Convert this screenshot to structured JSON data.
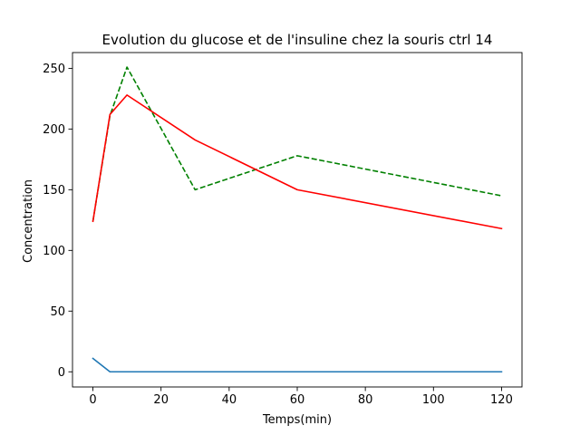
{
  "chart_data": {
    "type": "line",
    "title": "Evolution  du glucose et de l'insuline chez la souris ctrl 14",
    "xlabel": "Temps(min)",
    "ylabel": "Concentration",
    "xlim": [
      -6,
      126
    ],
    "ylim": [
      -12.5,
      263
    ],
    "xticks": [
      0,
      20,
      40,
      60,
      80,
      100,
      120
    ],
    "yticks": [
      0,
      50,
      100,
      150,
      200,
      250
    ],
    "grid": false,
    "series": [
      {
        "color": "#008000",
        "dash": "dashed",
        "points": [
          [
            0,
            124
          ],
          [
            5,
            211
          ],
          [
            10,
            251
          ],
          [
            30,
            150
          ],
          [
            60,
            178
          ],
          [
            120,
            145
          ]
        ]
      },
      {
        "color": "#ff0000",
        "dash": "solid",
        "points": [
          [
            0,
            124
          ],
          [
            5,
            212
          ],
          [
            10,
            228
          ],
          [
            30,
            191
          ],
          [
            60,
            150
          ],
          [
            120,
            118
          ]
        ]
      },
      {
        "color": "#1f77b4",
        "dash": "solid",
        "points": [
          [
            0,
            11
          ],
          [
            5,
            0
          ],
          [
            10,
            0
          ],
          [
            30,
            0
          ],
          [
            60,
            0
          ],
          [
            120,
            0
          ]
        ]
      }
    ]
  }
}
